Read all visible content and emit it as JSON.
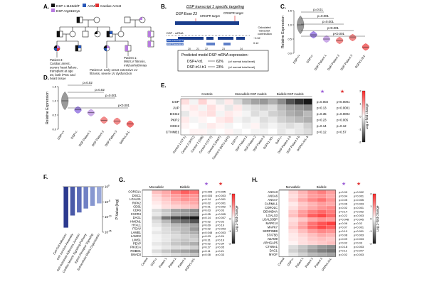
{
  "panel_letters": [
    "A.",
    "B.",
    "C.",
    "D.",
    "E.",
    "F.",
    "G.",
    "H."
  ],
  "pedigree": {
    "legend": [
      "DSP c.1146delT",
      "DSP Arg315Cys",
      "ACM",
      "Cardiac Arrest"
    ],
    "notes": [
      [
        "Patient 3:",
        "Cardiac arrest,",
        "severe heart failure,",
        "transplant at age",
        "20, both iPSC and",
        "heart tissue"
      ],
      [
        "Patient 1:",
        "Mild LV fibrosis,",
        "mild arrhythmias"
      ],
      [
        "Patient 2: early onset extensive LV",
        "fibrosis, severe LV dysfunction"
      ]
    ]
  },
  "transcript": {
    "title": "DSP transcript 1 specific targeting",
    "exon": "DSP Exon 23",
    "crispr_labels": [
      "CRISPR target",
      "CRISPR target"
    ],
    "mrna_label": "DSP - mRNA",
    "transcript_labels": [
      "DSP Transcript 1",
      "DSP Transcript 2"
    ],
    "exon_numbers": [
      "20",
      "21",
      "22",
      "23",
      "24"
    ],
    "contrib_label": [
      "Calculated",
      "transcript",
      "contribution"
    ],
    "tx_ratio": [
      "~0.32",
      "0.12"
    ],
    "predicted_title": "Predicted model DSP mRNA expression:",
    "predicted_rows": [
      {
        "genotype": "DSP+/-tr1",
        "value": "62%",
        "note": "(of normal total level)"
      },
      {
        "genotype": "DSP-tr1/-tr1",
        "value": "23%",
        "note": "(of normal total level)"
      }
    ]
  },
  "violin_c": {
    "ylabel": "Relative Expression",
    "categories": [
      "DSP+/+",
      "DSP+/-",
      "DSP Patient 1",
      "DSP Patient 2",
      "DSP Patient 3",
      "DSPtr1-/tr1-"
    ],
    "pvalues": [
      "p=0.01",
      "p=0.001",
      "p=0.001",
      "p<0.001",
      "p<0.001"
    ],
    "colors": [
      "#777777",
      "#8866dd",
      "#b98fe0",
      "#ee6666",
      "#ee6666",
      "#ee4444"
    ]
  },
  "violin_d": {
    "ylabel": "Relative Expression",
    "categories": [
      "DSP+/+",
      "DSP+/-",
      "DSP Patient 1",
      "DSP Patient 2",
      "DSP Patient 3",
      "DSPtr1-/tr1-"
    ],
    "pvalues": [
      "p=0.02",
      "p=0.02",
      "p=0.001",
      "p<0.001"
    ],
    "colors": [
      "#777777",
      "#8866dd",
      "#b98fe0",
      "#ee6666",
      "#ee6666",
      "#ee4444"
    ]
  },
  "heat_e": {
    "groups": [
      "Controls",
      "Monoallelic DSP models",
      "Biallelic DSP models"
    ],
    "rows": [
      "DSP",
      "JUP",
      "DSG2",
      "PKP2",
      "CDH2",
      "CTNNB1"
    ],
    "p_mono": [
      "p=0.002",
      "p=0.13",
      "p=0.35",
      "p=0.23",
      "p=0.14",
      "p=0.12"
    ],
    "p_bi": [
      "p<0.0001",
      "p=0.0001",
      "p=0.0004",
      "p=0.005",
      "p=0.12",
      "p=0.57"
    ],
    "columns": [
      "Control 1 (ST-1)",
      "Control 2 (WTC)",
      "Control 3 (GIB)",
      "Control 4 (ST-2)",
      "Control 5 (HWT)",
      "Control 6 (WTC-GFP)",
      "DSP+/+",
      "DSP Patient 1",
      "DSP Patient 2",
      "DSP Patient 3",
      "DSPtr1-/tr1-",
      "DSP+/-",
      "DSP Patient 2 b",
      "DSP Patient 3 b",
      "DSPtr1-/tr1- b"
    ],
    "colorbar_label": "Log 2-fold change",
    "colorbar_ticks": [
      "2",
      "1",
      "0",
      "-1",
      "-2"
    ],
    "values": [
      [
        0.3,
        -0.1,
        0.4,
        0.1,
        -0.2,
        0.2,
        -0.3,
        -0.6,
        -0.8,
        -0.9,
        -0.7,
        -1.0,
        -1.5,
        -1.8,
        -2.0
      ],
      [
        0.1,
        0.2,
        -0.1,
        0.3,
        0.1,
        -0.2,
        0.2,
        -0.2,
        -0.3,
        -0.4,
        -0.3,
        -0.6,
        -0.8,
        -0.9,
        -1.0
      ],
      [
        -0.2,
        0.1,
        0.2,
        0.3,
        -0.1,
        0.2,
        0.1,
        -0.1,
        -0.3,
        -0.2,
        -0.4,
        -0.5,
        -0.7,
        -0.8,
        -0.6
      ],
      [
        0.2,
        -0.1,
        0.1,
        0.0,
        0.2,
        0.3,
        -0.1,
        -0.2,
        -0.1,
        -0.3,
        -0.2,
        -0.4,
        -0.5,
        -0.6,
        -0.7
      ],
      [
        0.1,
        0.0,
        -0.1,
        0.2,
        0.1,
        -0.1,
        0.0,
        -0.1,
        0.1,
        -0.2,
        -0.1,
        -0.2,
        -0.3,
        -0.2,
        -0.4
      ],
      [
        0.0,
        0.1,
        0.1,
        -0.1,
        0.0,
        0.1,
        -0.1,
        0.0,
        -0.1,
        -0.1,
        0.0,
        -0.2,
        -0.1,
        -0.2,
        -0.3
      ]
    ]
  },
  "bar_f": {
    "ylabel": "P-Value (log)",
    "yticks": [
      "10^0",
      "10^-5",
      "10^-10",
      "10^-15"
    ],
    "categories": [
      "Cell-Cell Adhesion",
      "Cell Junction Assembly",
      "Cell-Substrate Adherens Junction",
      "Cardiac Muscle Signaling Pathway",
      "Ephrin Receptor Signaling",
      "Extracellular Matrix Organization"
    ],
    "values": [
      -13.5,
      -9.5,
      -8.5,
      -7.2,
      -6.3,
      -5.5
    ],
    "colors": [
      "#2c3a8f",
      "#4a5aa8",
      "#5c6cb8",
      "#7080c4",
      "#8797d0",
      "#9aa8d8"
    ]
  },
  "heat_g": {
    "groups": [
      "Monoallelic",
      "Biallelic"
    ],
    "rows": [
      "CORO1A",
      "DISC1",
      "LGALS1",
      "RIPK2",
      "CD81",
      "CDK6",
      "CXCR4",
      "DAG1",
      "HMCN1",
      "HYAL1",
      "ITGAV",
      "LAMB1",
      "LAMC2",
      "LIMS1",
      "PEAP",
      "PIK3CA",
      "ROBO1",
      "SMAD3"
    ],
    "p_mono": [
      "p=0.005",
      "p=0.003",
      "p=0.14",
      "p=0.02",
      "p=0.01",
      "p=0.03",
      "p=0.05",
      "p=0.14",
      "p=0.02",
      "p=0.09",
      "p=0.02",
      "p=0.048",
      "p=0.03",
      "p=0.31",
      "p=0.02",
      "p=0.27",
      "p=0.11",
      "p=0.08"
    ],
    "p_bi": [
      "p=0.005",
      "p=0.003",
      "p=0.001",
      "p=0.001",
      "p=0.002",
      "p=0.03",
      "p=0.005",
      "p=0.007",
      "p=0.02",
      "p=0.19",
      "p=0.003",
      "p=0.003",
      "p=0.24",
      "p=0.19",
      "p=0.34",
      "p=0.05",
      "p=0.21",
      "p=0.33"
    ],
    "columns": [
      "Control",
      "DSP+/-",
      "Patient 1",
      "Patient 2",
      "Patient 3",
      "DSPtr1-/tr1-"
    ],
    "colorbar_label": "Log 2-fold change",
    "colorbar_ticks": [
      "2",
      "1",
      "0",
      "-1",
      "-2"
    ],
    "values": [
      [
        0.0,
        0.6,
        0.8,
        1.2,
        1.5,
        1.3
      ],
      [
        0.0,
        0.4,
        0.7,
        0.9,
        1.1,
        1.0
      ],
      [
        0.0,
        0.3,
        0.5,
        0.8,
        1.0,
        0.9
      ],
      [
        0.0,
        0.2,
        0.4,
        0.6,
        0.7,
        0.8
      ],
      [
        0.0,
        0.1,
        0.3,
        0.4,
        0.5,
        0.6
      ],
      [
        0.0,
        -0.3,
        -0.5,
        -0.8,
        -0.9,
        -1.0
      ],
      [
        0.0,
        -0.2,
        -0.4,
        -0.7,
        -0.8,
        -0.9
      ],
      [
        0.0,
        -0.5,
        -1.2,
        -1.6,
        -1.8,
        -2.0
      ],
      [
        0.0,
        -0.3,
        -0.6,
        -1.1,
        -1.3,
        -1.5
      ],
      [
        0.0,
        -0.2,
        -0.4,
        -0.6,
        -0.7,
        -0.8
      ],
      [
        0.0,
        -0.1,
        -0.3,
        -0.5,
        -0.6,
        -0.9
      ],
      [
        0.0,
        -0.2,
        -0.3,
        -0.4,
        -0.6,
        -0.7
      ],
      [
        0.0,
        -0.1,
        -0.2,
        -0.3,
        -0.4,
        -0.5
      ],
      [
        0.0,
        -0.1,
        -0.2,
        -0.4,
        -0.5,
        -0.4
      ],
      [
        0.0,
        -0.2,
        -0.3,
        -0.5,
        -0.6,
        -0.7
      ],
      [
        0.0,
        -0.1,
        -0.2,
        -0.3,
        -0.3,
        -0.4
      ],
      [
        0.0,
        -0.3,
        -0.5,
        -0.7,
        -0.8,
        -0.9
      ],
      [
        0.0,
        -0.1,
        -0.2,
        -0.3,
        -0.4,
        -0.5
      ]
    ]
  },
  "heat_h": {
    "groups": [
      "Monoallelic",
      "Biallelic"
    ],
    "rows": [
      "ANXA3",
      "ANXA6",
      "ANXA7",
      "CARMIL1",
      "CORO1C",
      "DENND4A",
      "LGALS3",
      "LGALS3BP",
      "MAPK14",
      "MAPK7",
      "SERPINB9",
      "STAT5B",
      "ADAM9",
      "ARHGAP5",
      "CTNNA1",
      "DAG1",
      "MYOF"
    ],
    "p_mono": [
      "p=0.09",
      "p=0.04",
      "p=0.05",
      "p=0.06",
      "p=0.02",
      "p=0.14",
      "p=0.22",
      "p=0.048",
      "p=0.06",
      "p=0.07",
      "p=0.10",
      "p=0.08",
      "p=0.09",
      "p=0.02",
      "p=0.18",
      "p=0.11",
      "p=0.02"
    ],
    "p_bi": [
      "p=0.002",
      "p=0.001",
      "p=0.005",
      "p=0.003",
      "p=0.001",
      "p=0.002",
      "p=0.003",
      "p=0.045",
      "p=0.02",
      "p<0.001",
      "p=0.001",
      "p=0.003",
      "p=0.003",
      "p=0.03",
      "p=0.003",
      "p=0.047",
      "p=0.003"
    ],
    "columns": [
      "Control",
      "DSP+/-",
      "Patient 1",
      "Patient 2",
      "Patient 3",
      "DSPtr1-/tr1-"
    ],
    "colorbar_label": "Log 2-fold change",
    "colorbar_ticks": [
      "2",
      "1",
      "0",
      "-1",
      "-2"
    ],
    "values": [
      [
        0.0,
        0.4,
        0.7,
        1.0,
        1.2,
        0.9
      ],
      [
        0.0,
        0.3,
        0.6,
        0.9,
        1.0,
        0.8
      ],
      [
        0.0,
        0.4,
        0.8,
        1.1,
        1.3,
        1.0
      ],
      [
        0.0,
        0.2,
        0.5,
        0.7,
        0.9,
        0.8
      ],
      [
        0.0,
        0.3,
        0.6,
        0.8,
        1.0,
        1.1
      ],
      [
        0.0,
        0.5,
        0.9,
        1.2,
        1.4,
        1.2
      ],
      [
        0.0,
        0.6,
        1.0,
        1.5,
        1.7,
        1.4
      ],
      [
        0.0,
        0.3,
        0.5,
        0.8,
        1.0,
        0.9
      ],
      [
        0.0,
        0.4,
        0.8,
        1.3,
        1.6,
        1.8
      ],
      [
        0.0,
        0.5,
        0.9,
        1.4,
        1.7,
        1.5
      ],
      [
        0.0,
        0.3,
        0.6,
        0.9,
        1.1,
        1.0
      ],
      [
        0.0,
        0.2,
        0.4,
        0.6,
        0.8,
        0.7
      ],
      [
        0.0,
        0.2,
        0.3,
        0.5,
        0.6,
        0.5
      ],
      [
        0.0,
        0.1,
        0.3,
        0.4,
        0.5,
        0.6
      ],
      [
        0.0,
        -0.3,
        -0.5,
        -0.7,
        -0.9,
        -1.0
      ],
      [
        0.0,
        -0.4,
        -0.6,
        -0.9,
        -1.1,
        -1.2
      ],
      [
        0.0,
        -0.2,
        -0.4,
        -0.6,
        -0.7,
        -0.8
      ]
    ]
  },
  "chart_data": [
    {
      "type": "violin",
      "panel": "C",
      "ylabel": "Relative Expression",
      "categories": [
        "DSP+/+",
        "DSP+/-",
        "DSP Patient 1",
        "DSP Patient 2",
        "DSP Patient 3",
        "DSPtr1-/tr1-"
      ],
      "medians": [
        1.0,
        0.65,
        0.5,
        0.45,
        0.55,
        0.22
      ],
      "ylim": [
        0,
        1.5
      ]
    },
    {
      "type": "violin",
      "panel": "D",
      "ylabel": "Relative Expression",
      "categories": [
        "DSP+/+",
        "DSP+/-",
        "DSP Patient 1",
        "DSP Patient 2",
        "DSP Patient 3",
        "DSPtr1-/tr1-"
      ],
      "medians": [
        1.0,
        0.68,
        0.58,
        0.32,
        0.28,
        0.18
      ],
      "ylim": [
        0,
        1.5
      ]
    },
    {
      "type": "bar",
      "panel": "F",
      "ylabel": "P-Value (log)",
      "categories": [
        "Cell-Cell Adhesion",
        "Cell Junction Assembly",
        "Cell-Substrate Adherens Junction",
        "Cardiac Muscle Signaling Pathway",
        "Ephrin Receptor Signaling",
        "Extracellular Matrix Organization"
      ],
      "values": [
        -13.5,
        -9.5,
        -8.5,
        -7.2,
        -6.3,
        -5.5
      ],
      "ylim": [
        -15,
        0
      ]
    },
    {
      "type": "heatmap",
      "panel": "E"
    },
    {
      "type": "heatmap",
      "panel": "G"
    },
    {
      "type": "heatmap",
      "panel": "H"
    }
  ]
}
